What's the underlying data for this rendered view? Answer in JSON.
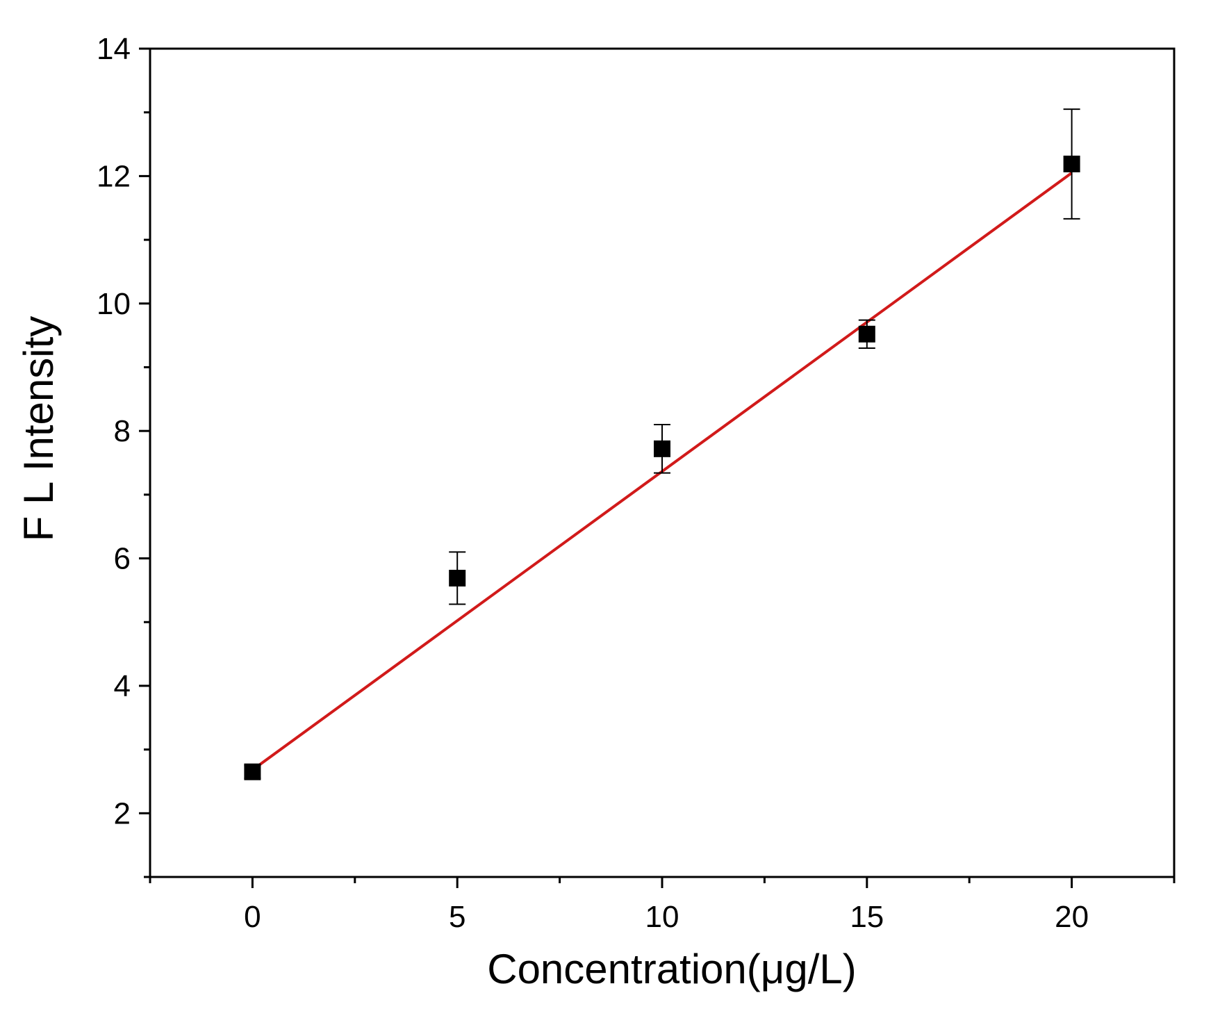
{
  "chart_data": {
    "type": "scatter",
    "title": "",
    "xlabel": "Concentration(μg/L)",
    "ylabel": "F L Intensity",
    "xlim": [
      -2.5,
      22.5
    ],
    "ylim": [
      1,
      14
    ],
    "xticks": [
      0,
      5,
      10,
      15,
      20
    ],
    "yticks": [
      2,
      4,
      6,
      8,
      10,
      12,
      14
    ],
    "grid": false,
    "legend": "none",
    "series": [
      {
        "marker": "square",
        "color": "#000000",
        "x": [
          0,
          5,
          10,
          15,
          20
        ],
        "y": [
          2.65,
          5.69,
          7.72,
          9.52,
          12.19
        ],
        "error": [
          0.1,
          0.41,
          0.38,
          0.22,
          0.86
        ]
      }
    ],
    "fit_line": {
      "color": "#d11a1a",
      "x": [
        0,
        20
      ],
      "y": [
        2.68,
        12.05
      ]
    }
  }
}
